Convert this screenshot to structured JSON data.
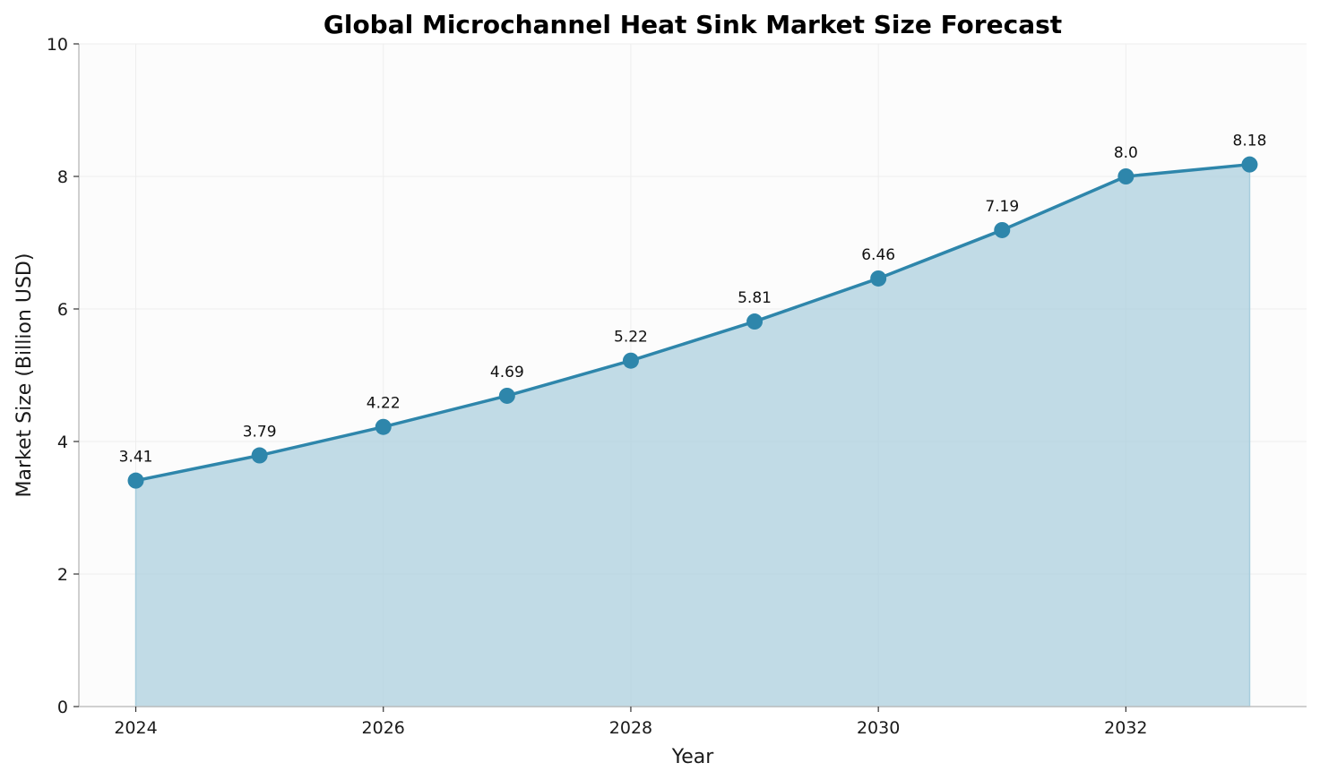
{
  "chart_data": {
    "type": "area",
    "title": "Global Microchannel Heat Sink Market Size Forecast",
    "xlabel": "Year",
    "ylabel": "Market Size (Billion USD)",
    "x": [
      2024,
      2025,
      2026,
      2027,
      2028,
      2029,
      2030,
      2031,
      2032,
      2033
    ],
    "values": [
      3.41,
      3.79,
      4.22,
      4.69,
      5.22,
      5.81,
      6.46,
      7.19,
      8.0,
      8.18
    ],
    "data_labels": [
      "3.41",
      "3.79",
      "4.22",
      "4.69",
      "5.22",
      "5.81",
      "6.46",
      "7.19",
      "8.0",
      "8.18"
    ],
    "xticks": [
      2024,
      2026,
      2028,
      2030,
      2032
    ],
    "xtick_labels": [
      "2024",
      "2026",
      "2028",
      "2030",
      "2032"
    ],
    "yticks": [
      0,
      2,
      4,
      6,
      8,
      10
    ],
    "ytick_labels": [
      "0",
      "2",
      "4",
      "6",
      "8",
      "10"
    ],
    "xlim": [
      2023.54,
      2033.46
    ],
    "ylim": [
      0,
      10
    ],
    "grid": true,
    "markers": true,
    "colors": {
      "line": "#2e86ab",
      "fill": "#a8cddd",
      "plot_background": "#fcfcfc",
      "grid": "#eeeeee",
      "spine": "#c0c0c0"
    }
  }
}
